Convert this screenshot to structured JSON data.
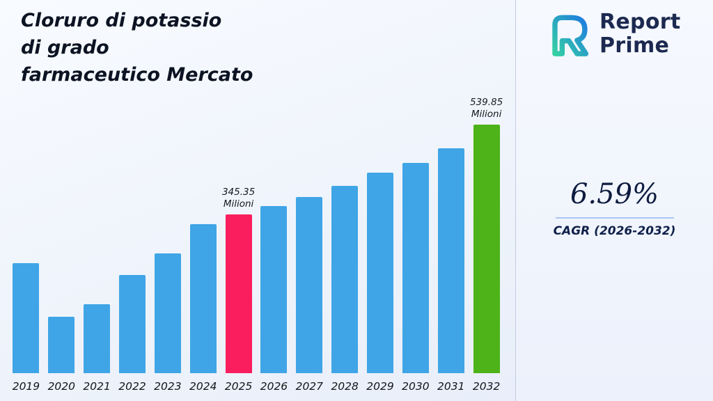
{
  "title": {
    "lines": [
      "Cloruro di potassio",
      "di grado",
      "farmaceutico Mercato"
    ]
  },
  "logo": {
    "brand_line1": "Report",
    "brand_line2": "Prime",
    "icon": "report-prime-monogram",
    "icon_color_start": "#35d0a5",
    "icon_color_end": "#1f7ae0"
  },
  "stats": {
    "cagr_value": "6.59%",
    "cagr_label": "CAGR (2026-2032)"
  },
  "chart_data": {
    "type": "bar",
    "title": "Cloruro di potassio di grado farmaceutico Mercato",
    "xlabel": "",
    "ylabel": "",
    "unit": "Milioni",
    "ylim": [
      0,
      560
    ],
    "grid": false,
    "legend": false,
    "bar_color": "#3FA5E6",
    "categories": [
      "2019",
      "2020",
      "2021",
      "2022",
      "2023",
      "2024",
      "2025",
      "2026",
      "2027",
      "2028",
      "2029",
      "2030",
      "2031",
      "2032"
    ],
    "values": [
      239,
      122,
      150,
      213,
      260,
      324,
      345.35,
      363,
      383,
      407,
      435,
      456,
      488,
      539.85
    ],
    "highlights": [
      {
        "category": "2025",
        "color": "#FA1E5E"
      },
      {
        "category": "2032",
        "color": "#4DB318"
      }
    ],
    "annotations": [
      {
        "category": "2025",
        "value_label": "345.35",
        "unit_label": "Milioni"
      },
      {
        "category": "2032",
        "value_label": "539.85",
        "unit_label": "Milioni"
      }
    ]
  }
}
